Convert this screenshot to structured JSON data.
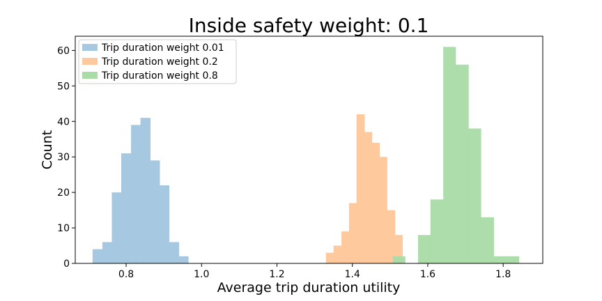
{
  "chart_data": {
    "type": "histogram",
    "title": "Inside safety weight: 0.1",
    "xlabel": "Average trip duration utility",
    "ylabel": "Count",
    "xlim": [
      0.665,
      1.905
    ],
    "ylim": [
      0,
      64
    ],
    "xticks": [
      0.8,
      1.0,
      1.2,
      1.4,
      1.6,
      1.8
    ],
    "xtick_labels": [
      "0.8",
      "1.0",
      "1.2",
      "1.4",
      "1.6",
      "1.8"
    ],
    "yticks": [
      0,
      10,
      20,
      30,
      40,
      50,
      60
    ],
    "ytick_labels": [
      "0",
      "10",
      "20",
      "30",
      "40",
      "50",
      "60"
    ],
    "grid": false,
    "legend_position": "top-left",
    "series": [
      {
        "name": "Trip duration weight 0.01",
        "color": "#a6c8e0",
        "bins": [
          {
            "x0": 0.711,
            "x1": 0.737,
            "count": 4
          },
          {
            "x0": 0.737,
            "x1": 0.762,
            "count": 6
          },
          {
            "x0": 0.762,
            "x1": 0.787,
            "count": 20
          },
          {
            "x0": 0.787,
            "x1": 0.813,
            "count": 31
          },
          {
            "x0": 0.813,
            "x1": 0.838,
            "count": 39
          },
          {
            "x0": 0.838,
            "x1": 0.864,
            "count": 41
          },
          {
            "x0": 0.864,
            "x1": 0.889,
            "count": 29
          },
          {
            "x0": 0.889,
            "x1": 0.914,
            "count": 22
          },
          {
            "x0": 0.914,
            "x1": 0.94,
            "count": 6
          },
          {
            "x0": 0.94,
            "x1": 0.965,
            "count": 2
          }
        ]
      },
      {
        "name": "Trip duration weight 0.2",
        "color": "#ffc99e",
        "bins": [
          {
            "x0": 1.33,
            "x1": 1.35,
            "count": 3
          },
          {
            "x0": 1.35,
            "x1": 1.371,
            "count": 5
          },
          {
            "x0": 1.371,
            "x1": 1.391,
            "count": 9
          },
          {
            "x0": 1.391,
            "x1": 1.411,
            "count": 17
          },
          {
            "x0": 1.411,
            "x1": 1.432,
            "count": 42
          },
          {
            "x0": 1.432,
            "x1": 1.452,
            "count": 37
          },
          {
            "x0": 1.452,
            "x1": 1.472,
            "count": 34
          },
          {
            "x0": 1.472,
            "x1": 1.492,
            "count": 30
          },
          {
            "x0": 1.492,
            "x1": 1.513,
            "count": 15
          },
          {
            "x0": 1.513,
            "x1": 1.533,
            "count": 8
          }
        ]
      },
      {
        "name": "Trip duration weight 0.8",
        "color": "#a9dba6",
        "bins": [
          {
            "x0": 1.507,
            "x1": 1.54,
            "count": 2
          },
          {
            "x0": 1.54,
            "x1": 1.574,
            "count": 0
          },
          {
            "x0": 1.574,
            "x1": 1.607,
            "count": 8
          },
          {
            "x0": 1.607,
            "x1": 1.641,
            "count": 18
          },
          {
            "x0": 1.641,
            "x1": 1.674,
            "count": 61
          },
          {
            "x0": 1.674,
            "x1": 1.708,
            "count": 56
          },
          {
            "x0": 1.708,
            "x1": 1.741,
            "count": 38
          },
          {
            "x0": 1.741,
            "x1": 1.775,
            "count": 13
          },
          {
            "x0": 1.775,
            "x1": 1.808,
            "count": 2
          },
          {
            "x0": 1.808,
            "x1": 1.842,
            "count": 2
          }
        ]
      }
    ]
  }
}
